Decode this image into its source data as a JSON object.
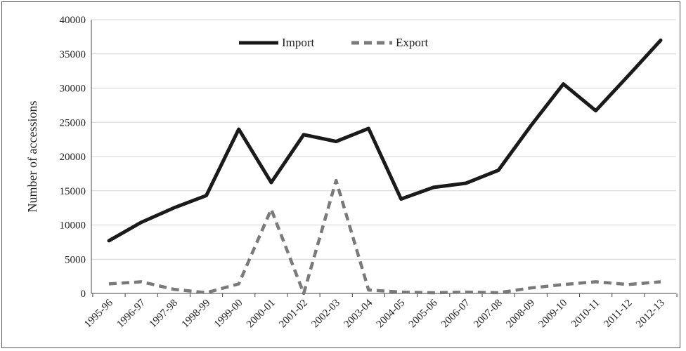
{
  "chart_data": {
    "type": "line",
    "title": "",
    "xlabel": "",
    "ylabel": "Number of accessions",
    "ylim": [
      0,
      40000
    ],
    "y_ticks": [
      0,
      5000,
      10000,
      15000,
      20000,
      25000,
      30000,
      35000,
      40000
    ],
    "grid": "horizontal",
    "legend_position": "top-center",
    "categories": [
      "1995-96",
      "1996-97",
      "1997-98",
      "1998-99",
      "1999-00",
      "2000-01",
      "2001-02",
      "2002-03",
      "2003-04",
      "2004-05",
      "2005-06",
      "2006-07",
      "2007-08",
      "2008-09",
      "2009-10",
      "2010-11",
      "2011-12",
      "2012-13"
    ],
    "series": [
      {
        "name": "Import",
        "style": "solid",
        "color": "#1a1a1a",
        "values": [
          7700,
          10400,
          12500,
          14300,
          24000,
          16200,
          23200,
          22200,
          24100,
          13800,
          15500,
          16100,
          18000,
          24500,
          30600,
          26700,
          31800,
          37000
        ]
      },
      {
        "name": "Export",
        "style": "dashed",
        "color": "#7a7a7a",
        "values": [
          1400,
          1700,
          600,
          100,
          1400,
          12300,
          0,
          16500,
          500,
          200,
          100,
          200,
          100,
          800,
          1300,
          1700,
          1300,
          1700
        ]
      }
    ]
  }
}
